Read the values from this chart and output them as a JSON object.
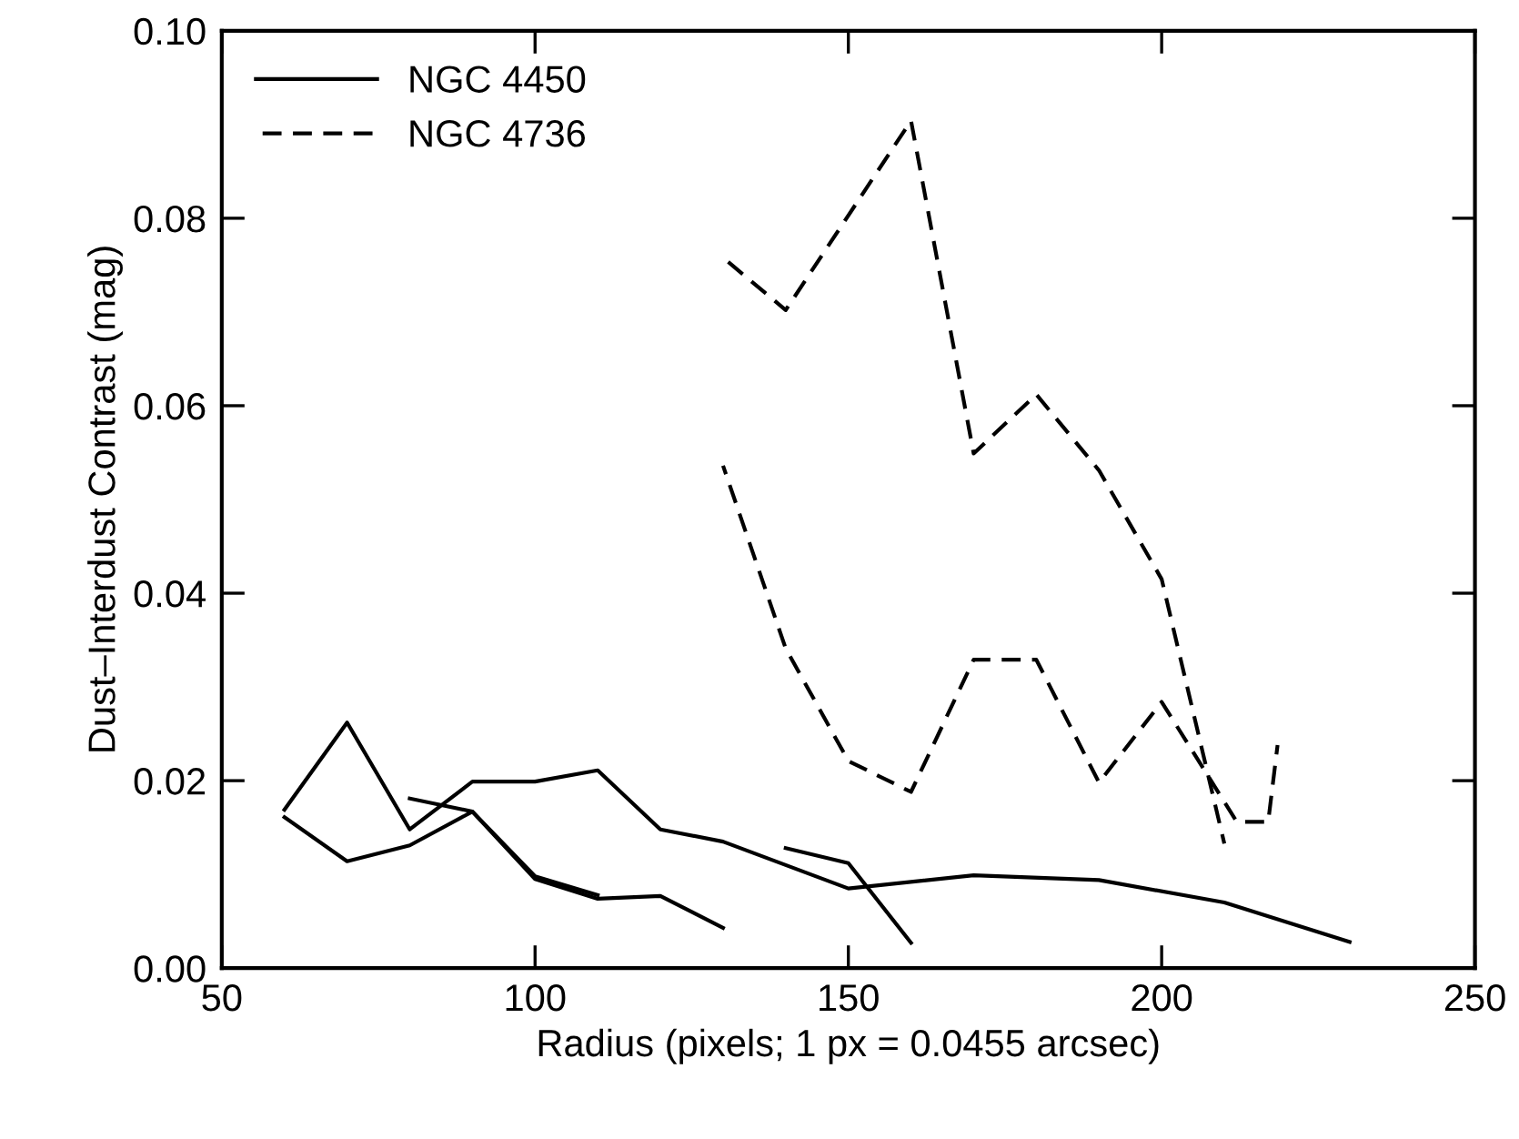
{
  "chart_data": {
    "type": "line",
    "xlabel": "Radius (pixels; 1 px = 0.0455 arcsec)",
    "ylabel": "Dust–Interdust Contrast (mag)",
    "xlim": [
      50,
      250
    ],
    "xticks": [
      50,
      100,
      150,
      200,
      250
    ],
    "ylim": [
      0,
      0.1
    ],
    "yticks": [
      {
        "value": 0,
        "label": "0.00"
      },
      {
        "value": 0.02,
        "label": "0.02"
      },
      {
        "value": 0.04,
        "label": "0.04"
      },
      {
        "value": 0.06,
        "label": "0.06"
      },
      {
        "value": 0.08,
        "label": "0.08"
      },
      {
        "value": 0.1,
        "label": "0.10"
      }
    ],
    "grid": false,
    "legend": "top left",
    "marker": "none",
    "series": [
      {
        "name": "NGC 4450",
        "color": "#000000",
        "line_style": "solid",
        "x": [
          60,
          70,
          80,
          90,
          100,
          110,
          120,
          130,
          150,
          170,
          190,
          210,
          230
        ],
        "values": [
          0.0169,
          0.0262,
          0.0148,
          0.0199,
          0.0199,
          0.0211,
          0.0148,
          0.0135,
          0.0085,
          0.0099,
          0.0094,
          0.007,
          0.0028
        ]
      },
      {
        "color": "#000000",
        "line_style": "solid",
        "x": [
          60,
          70,
          80,
          90,
          100,
          110,
          120,
          130
        ],
        "values": [
          0.0161,
          0.0114,
          0.0131,
          0.0167,
          0.0095,
          0.0074,
          0.0077,
          0.0043
        ]
      },
      {
        "color": "#000000",
        "line_style": "solid",
        "x": [
          80,
          90,
          100,
          110
        ],
        "values": [
          0.0181,
          0.0167,
          0.0098,
          0.0078
        ]
      },
      {
        "color": "#000000",
        "line_style": "solid",
        "x": [
          140,
          150,
          160
        ],
        "values": [
          0.0128,
          0.0112,
          0.0027
        ]
      },
      {
        "name": "NGC 4736",
        "color": "#000000",
        "line_style": "dashed",
        "x": [
          130,
          140,
          160,
          170,
          180,
          190,
          200,
          210
        ],
        "values": [
          0.0758,
          0.0702,
          0.0904,
          0.0549,
          0.0612,
          0.0531,
          0.0415,
          0.0133
        ]
      },
      {
        "color": "#000000",
        "line_style": "dashed",
        "x": [
          130,
          140,
          150,
          160,
          170,
          180,
          190,
          200,
          212,
          217,
          218.5
        ],
        "values": [
          0.0536,
          0.0341,
          0.0221,
          0.0188,
          0.0329,
          0.0329,
          0.0198,
          0.0284,
          0.0156,
          0.0156,
          0.0238
        ]
      }
    ]
  }
}
